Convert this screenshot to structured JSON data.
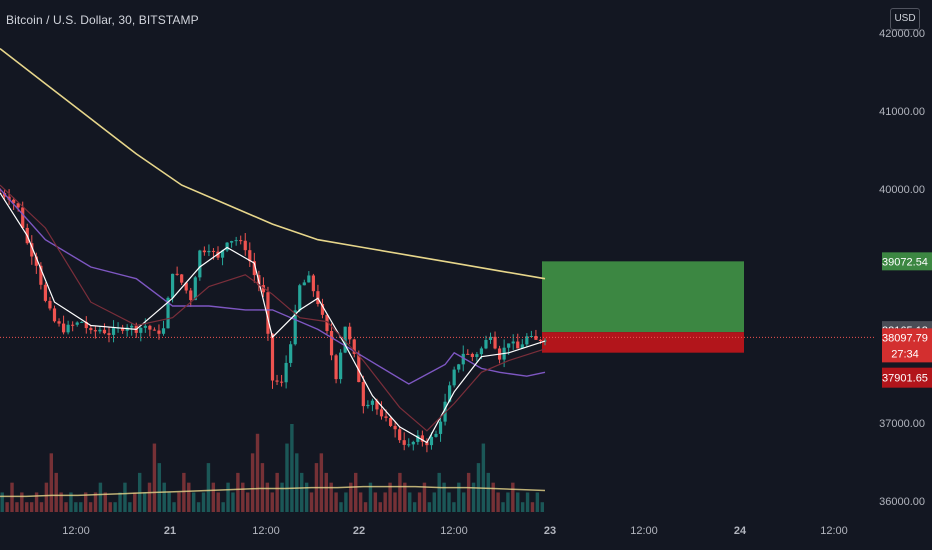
{
  "header": {
    "symbol_title": "Bitcoin / U.S. Dollar, 30, BITSTAMP",
    "currency_button": "USD"
  },
  "price_badges": {
    "target": "39072.54",
    "last_close": "38165.13",
    "current": "38097.79",
    "countdown": "27:34",
    "stop": "37901.65"
  },
  "colors": {
    "background": "#131722",
    "up": "#26a69a",
    "down": "#ef5350",
    "target_zone": "#3c8742",
    "stop_zone": "#b2151b",
    "ma_slow": "#e7d68b",
    "ma_mid": "#7e57c2",
    "ma_fast": "#ffffff",
    "ma_dark": "#7a2e3a"
  },
  "chart_data": {
    "type": "candlestick",
    "x_tick_labels": [
      "12:00",
      "21",
      "12:00",
      "22",
      "12:00",
      "23",
      "12:00",
      "24",
      "12:00"
    ],
    "y_tick_labels": [
      "42000.00",
      "41000.00",
      "40000.00",
      "37000.00",
      "36000.00"
    ],
    "ylim": [
      35850,
      42150
    ],
    "grid": false,
    "close_path": [
      [
        0,
        39950
      ],
      [
        2,
        39900
      ],
      [
        4,
        39750
      ],
      [
        6,
        39300
      ],
      [
        8,
        39050
      ],
      [
        10,
        38550
      ],
      [
        12,
        38300
      ],
      [
        14,
        38200
      ],
      [
        16,
        38250
      ],
      [
        18,
        38300
      ],
      [
        20,
        38150
      ],
      [
        22,
        38200
      ],
      [
        24,
        38150
      ],
      [
        26,
        38200
      ],
      [
        28,
        38250
      ],
      [
        30,
        38200
      ],
      [
        32,
        38250
      ],
      [
        34,
        38150
      ],
      [
        36,
        38200
      ],
      [
        38,
        38950
      ],
      [
        40,
        38800
      ],
      [
        42,
        38600
      ],
      [
        44,
        39200
      ],
      [
        46,
        39250
      ],
      [
        48,
        39100
      ],
      [
        50,
        39350
      ],
      [
        52,
        39350
      ],
      [
        54,
        39250
      ],
      [
        56,
        38900
      ],
      [
        58,
        38650
      ],
      [
        60,
        37550
      ],
      [
        62,
        37500
      ],
      [
        64,
        38050
      ],
      [
        66,
        38750
      ],
      [
        68,
        38850
      ],
      [
        70,
        38550
      ],
      [
        72,
        38150
      ],
      [
        74,
        37600
      ],
      [
        76,
        38250
      ],
      [
        78,
        37850
      ],
      [
        80,
        37250
      ],
      [
        82,
        37300
      ],
      [
        84,
        37050
      ],
      [
        86,
        37000
      ],
      [
        88,
        36800
      ],
      [
        90,
        36700
      ],
      [
        92,
        36800
      ],
      [
        94,
        36750
      ],
      [
        96,
        36850
      ],
      [
        98,
        37250
      ],
      [
        100,
        37650
      ],
      [
        102,
        37900
      ],
      [
        104,
        37850
      ],
      [
        106,
        37950
      ],
      [
        108,
        38150
      ],
      [
        110,
        37850
      ],
      [
        112,
        38050
      ],
      [
        114,
        37950
      ],
      [
        116,
        38100
      ],
      [
        118,
        38050
      ],
      [
        120,
        38097.79
      ]
    ],
    "moving_averages": [
      {
        "points": [
          [
            0,
            41800
          ],
          [
            10,
            41350
          ],
          [
            20,
            40900
          ],
          [
            30,
            40450
          ],
          [
            40,
            40050
          ],
          [
            50,
            39800
          ],
          [
            60,
            39550
          ],
          [
            70,
            39350
          ],
          [
            80,
            39250
          ],
          [
            90,
            39150
          ],
          [
            100,
            39050
          ],
          [
            110,
            38950
          ],
          [
            120,
            38850
          ]
        ]
      },
      {
        "points": [
          [
            0,
            40000
          ],
          [
            10,
            39350
          ],
          [
            20,
            39000
          ],
          [
            30,
            38850
          ],
          [
            38,
            38500
          ],
          [
            46,
            38500
          ],
          [
            54,
            38450
          ],
          [
            60,
            38450
          ],
          [
            70,
            38200
          ],
          [
            80,
            37850
          ],
          [
            90,
            37500
          ],
          [
            98,
            37750
          ],
          [
            100,
            37900
          ],
          [
            106,
            37700
          ],
          [
            110,
            37650
          ],
          [
            116,
            37600
          ],
          [
            120,
            37650
          ]
        ]
      },
      {
        "points": [
          [
            0,
            39950
          ],
          [
            6,
            39400
          ],
          [
            12,
            38550
          ],
          [
            20,
            38250
          ],
          [
            30,
            38200
          ],
          [
            38,
            38600
          ],
          [
            44,
            39000
          ],
          [
            50,
            39250
          ],
          [
            56,
            39050
          ],
          [
            60,
            38100
          ],
          [
            66,
            38450
          ],
          [
            70,
            38600
          ],
          [
            76,
            38000
          ],
          [
            82,
            37350
          ],
          [
            88,
            36950
          ],
          [
            94,
            36750
          ],
          [
            100,
            37400
          ],
          [
            106,
            37850
          ],
          [
            112,
            37900
          ],
          [
            120,
            38050
          ]
        ]
      },
      {
        "points": [
          [
            0,
            40050
          ],
          [
            10,
            39500
          ],
          [
            20,
            38550
          ],
          [
            30,
            38250
          ],
          [
            38,
            38350
          ],
          [
            46,
            38750
          ],
          [
            54,
            38900
          ],
          [
            60,
            38650
          ],
          [
            66,
            38350
          ],
          [
            72,
            38300
          ],
          [
            80,
            37800
          ],
          [
            88,
            37200
          ],
          [
            94,
            36900
          ],
          [
            100,
            37250
          ],
          [
            106,
            37650
          ],
          [
            112,
            37800
          ],
          [
            120,
            37950
          ]
        ]
      }
    ],
    "volume": [
      2,
      1,
      3,
      1,
      2,
      1,
      1,
      2,
      1,
      3,
      6,
      4,
      2,
      1,
      2,
      1,
      1,
      2,
      1,
      2,
      3,
      2,
      1,
      1,
      2,
      3,
      1,
      2,
      4,
      2,
      3,
      7,
      5,
      3,
      2,
      1,
      2,
      4,
      3,
      2,
      1,
      2,
      5,
      3,
      2,
      1,
      3,
      2,
      4,
      3,
      2,
      6,
      8,
      5,
      3,
      2,
      4,
      3,
      7,
      9,
      6,
      4,
      3,
      2,
      5,
      6,
      4,
      3,
      2,
      1,
      2,
      3,
      4,
      2,
      1,
      3,
      2,
      1,
      2,
      3,
      2,
      4,
      3,
      2,
      1,
      2,
      3,
      1,
      2,
      4,
      3,
      2,
      1,
      3,
      2,
      4,
      3,
      5,
      7,
      4,
      3,
      2,
      1,
      2,
      3,
      2,
      1,
      2,
      1,
      2,
      1
    ],
    "volume_ma": [
      1.6,
      1.6,
      1.7,
      1.7,
      1.8,
      1.9,
      2.0,
      2.1,
      2.2,
      2.3,
      2.4,
      2.4,
      2.5,
      2.5,
      2.6,
      2.6,
      2.6,
      2.5,
      2.5,
      2.4,
      2.3,
      2.2
    ],
    "position": {
      "entry": 38165.13,
      "target": 39072.54,
      "stop": 37901.65
    }
  }
}
